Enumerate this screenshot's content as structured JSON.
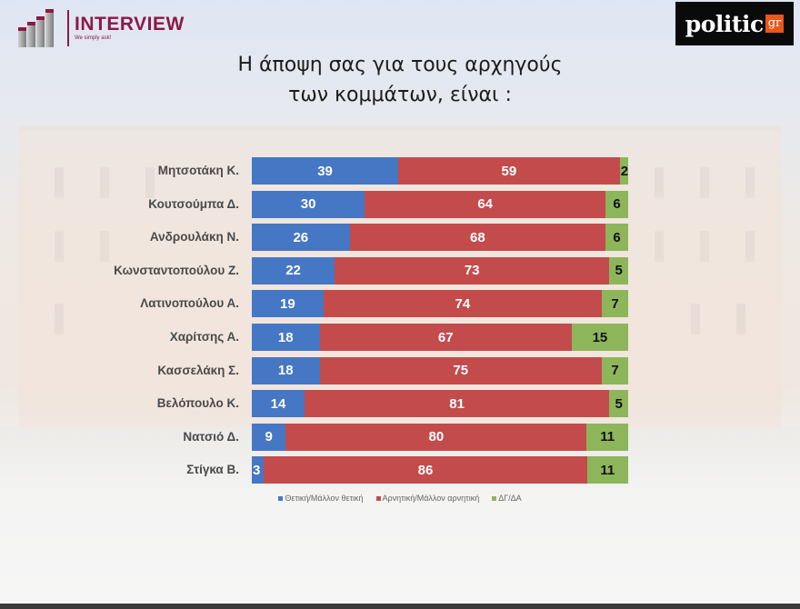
{
  "header": {
    "left_logo": {
      "name": "INTERVIEW",
      "tagline": "We simply ask!",
      "color": "#8b1a45"
    },
    "right_logo": {
      "word": "politic",
      "suffix": "gr",
      "accent": "#e8571c"
    }
  },
  "title_lines": [
    "Η άποψη σας για τους αρχηγούς",
    "των κομμάτων,  είναι :"
  ],
  "colors": {
    "positive": "#4677c4",
    "negative": "#c44b4b",
    "dk": "#8db65a"
  },
  "legend": [
    {
      "label": "Θετική/Μάλλον θετική",
      "color": "#4677c4"
    },
    {
      "label": "Αρνητική/Μάλλον αρνητική",
      "color": "#c44b4b"
    },
    {
      "label": "ΔΓ/ΔΑ",
      "color": "#8db65a"
    }
  ],
  "chart_data": {
    "type": "bar",
    "orientation": "horizontal",
    "stacked": true,
    "title": "Η άποψη σας για τους αρχηγούς των κομμάτων, είναι :",
    "xlabel": "",
    "ylabel": "",
    "xlim": [
      0,
      100
    ],
    "grid": false,
    "legend_position": "bottom",
    "categories": [
      "Μητσοτάκη Κ.",
      "Κουτσούμπα Δ.",
      "Ανδρουλάκη Ν.",
      "Κωνσταντοπούλου Ζ.",
      "Λατινοπούλου Α.",
      "Χαρίτσης Α.",
      "Κασσελάκη Σ.",
      "Βελόπουλο Κ.",
      "Νατσιό Δ.",
      "Στίγκα Β."
    ],
    "series": [
      {
        "name": "Θετική/Μάλλον θετική",
        "values": [
          39,
          30,
          26,
          22,
          19,
          18,
          18,
          14,
          9,
          3
        ]
      },
      {
        "name": "Αρνητική/Μάλλον αρνητική",
        "values": [
          59,
          64,
          68,
          73,
          74,
          67,
          75,
          81,
          80,
          86
        ]
      },
      {
        "name": "ΔΓ/ΔΑ",
        "values": [
          2,
          6,
          6,
          5,
          7,
          15,
          7,
          5,
          11,
          11
        ]
      }
    ]
  },
  "rows": [
    {
      "label": "Μητσοτάκη Κ.",
      "pos": "39",
      "neg": "59",
      "dk": "2"
    },
    {
      "label": "Κουτσούμπα Δ.",
      "pos": "30",
      "neg": "64",
      "dk": "6"
    },
    {
      "label": "Ανδρουλάκη Ν.",
      "pos": "26",
      "neg": "68",
      "dk": "6"
    },
    {
      "label": "Κωνσταντοπούλου Ζ.",
      "pos": "22",
      "neg": "73",
      "dk": "5"
    },
    {
      "label": "Λατινοπούλου Α.",
      "pos": "19",
      "neg": "74",
      "dk": "7"
    },
    {
      "label": "Χαρίτσης Α.",
      "pos": "18",
      "neg": "67",
      "dk": "15"
    },
    {
      "label": "Κασσελάκη Σ.",
      "pos": "18",
      "neg": "75",
      "dk": "7"
    },
    {
      "label": "Βελόπουλο Κ.",
      "pos": "14",
      "neg": "81",
      "dk": "5"
    },
    {
      "label": "Νατσιό Δ.",
      "pos": "9",
      "neg": "80",
      "dk": "11"
    },
    {
      "label": "Στίγκα Β.",
      "pos": "3",
      "neg": "86",
      "dk": "11"
    }
  ]
}
